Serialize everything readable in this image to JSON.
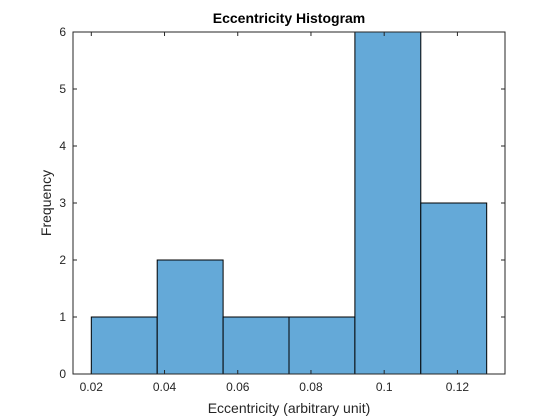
{
  "chart_data": {
    "type": "bar",
    "title": "Eccentricity Histogram",
    "xlabel": "Eccentricity (arbitrary unit)",
    "ylabel": "Frequency",
    "bin_edges": [
      0.02,
      0.038,
      0.056,
      0.074,
      0.092,
      0.11,
      0.128
    ],
    "values": [
      1,
      2,
      1,
      1,
      6,
      3
    ],
    "xlim": [
      0.015,
      0.133
    ],
    "ylim": [
      0,
      6
    ],
    "xticks": [
      0.02,
      0.04,
      0.06,
      0.08,
      0.1,
      0.12
    ],
    "xtick_labels": [
      "0.02",
      "0.04",
      "0.06",
      "0.08",
      "0.1",
      "0.12"
    ],
    "yticks": [
      0,
      1,
      2,
      3,
      4,
      5,
      6
    ],
    "ytick_labels": [
      "0",
      "1",
      "2",
      "3",
      "4",
      "5",
      "6"
    ],
    "grid": false,
    "bar_color": "#64a9d8",
    "edge_color": "#000000"
  }
}
